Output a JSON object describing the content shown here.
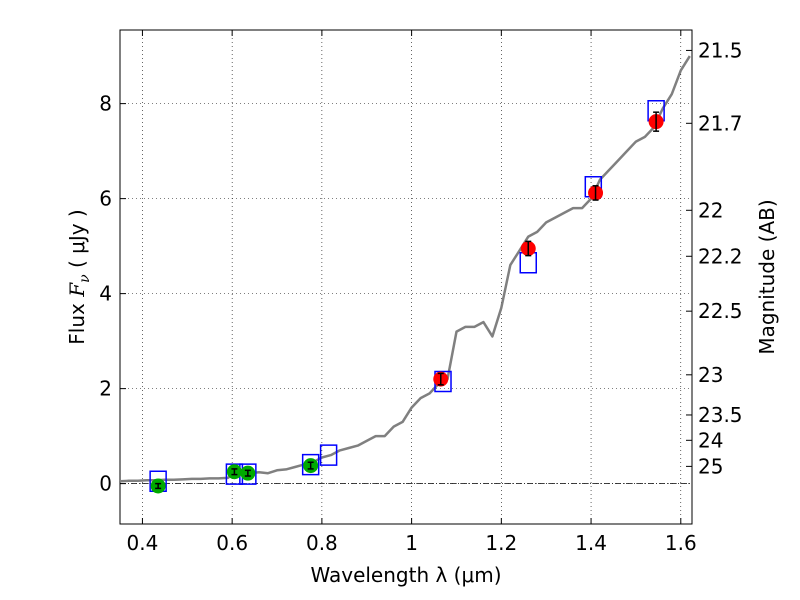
{
  "chart_data": {
    "type": "scatter",
    "xlabel": "Wavelength  λ (μm)",
    "ylabel_prefix": "Flux  ",
    "ylabel_symbol": "F",
    "ylabel_subscript": "ν",
    "ylabel_suffix": "  ( μJy )",
    "y2label": "Magnitude (AB)",
    "xlim": [
      0.35,
      1.625
    ],
    "ylim": [
      -0.85,
      9.55
    ],
    "grid": "dotted",
    "x_ticks": [
      0.4,
      0.6,
      0.8,
      1.0,
      1.2,
      1.4,
      1.6
    ],
    "x_tick_labels": [
      "0.4",
      "0.6",
      "0.8",
      "1",
      "1.2",
      "1.4",
      "1.6"
    ],
    "y_ticks": [
      0,
      2,
      4,
      6,
      8
    ],
    "y_tick_labels": [
      "0",
      "2",
      "4",
      "6",
      "8"
    ],
    "mag_ticks": [
      21.5,
      21.7,
      22,
      22.2,
      22.5,
      23,
      23.5,
      24,
      25
    ],
    "mag_tick_labels": [
      "21.5",
      "21.7",
      "22",
      "22.2",
      "22.5",
      "23",
      "23.5",
      "24",
      "25"
    ],
    "zero_line": 0,
    "sed_model": {
      "color": "#808080",
      "x": [
        0.35,
        0.37,
        0.39,
        0.41,
        0.43,
        0.45,
        0.47,
        0.49,
        0.51,
        0.53,
        0.55,
        0.57,
        0.59,
        0.6,
        0.62,
        0.64,
        0.66,
        0.68,
        0.7,
        0.72,
        0.74,
        0.76,
        0.78,
        0.8,
        0.82,
        0.84,
        0.86,
        0.88,
        0.9,
        0.92,
        0.94,
        0.96,
        0.98,
        1.0,
        1.02,
        1.04,
        1.06,
        1.08,
        1.1,
        1.12,
        1.14,
        1.16,
        1.18,
        1.2,
        1.22,
        1.24,
        1.26,
        1.28,
        1.3,
        1.32,
        1.34,
        1.36,
        1.38,
        1.4,
        1.42,
        1.44,
        1.46,
        1.48,
        1.5,
        1.52,
        1.54,
        1.56,
        1.58,
        1.6,
        1.62
      ],
      "y": [
        0.05,
        0.06,
        0.06,
        0.07,
        0.07,
        0.08,
        0.08,
        0.09,
        0.1,
        0.1,
        0.11,
        0.11,
        0.12,
        0.18,
        0.2,
        0.22,
        0.24,
        0.22,
        0.28,
        0.3,
        0.35,
        0.4,
        0.45,
        0.55,
        0.6,
        0.7,
        0.75,
        0.8,
        0.9,
        1.0,
        1.0,
        1.2,
        1.3,
        1.6,
        1.8,
        1.9,
        2.1,
        2.2,
        3.2,
        3.3,
        3.3,
        3.4,
        3.1,
        3.7,
        4.6,
        4.9,
        5.2,
        5.3,
        5.5,
        5.6,
        5.7,
        5.8,
        5.8,
        6.0,
        6.4,
        6.6,
        6.8,
        7.0,
        7.2,
        7.3,
        7.5,
        7.9,
        8.2,
        8.7,
        9.0
      ]
    },
    "model_photometry": {
      "color": "#0000ff",
      "x": [
        0.435,
        0.605,
        0.635,
        0.775,
        0.815,
        1.07,
        1.26,
        1.405,
        1.545
      ],
      "y": [
        0.05,
        0.2,
        0.2,
        0.4,
        0.6,
        2.15,
        4.65,
        6.25,
        7.85
      ]
    },
    "observed_optical": {
      "color": "#00aa00",
      "x": [
        0.435,
        0.605,
        0.635,
        0.775
      ],
      "y": [
        -0.05,
        0.25,
        0.22,
        0.38
      ],
      "err": [
        0.05,
        0.06,
        0.06,
        0.07
      ]
    },
    "observed_nir": {
      "color": "#ff0000",
      "x": [
        1.065,
        1.26,
        1.41,
        1.545
      ],
      "y": [
        2.2,
        4.95,
        6.12,
        7.62
      ],
      "err": [
        0.12,
        0.15,
        0.15,
        0.2
      ]
    }
  }
}
